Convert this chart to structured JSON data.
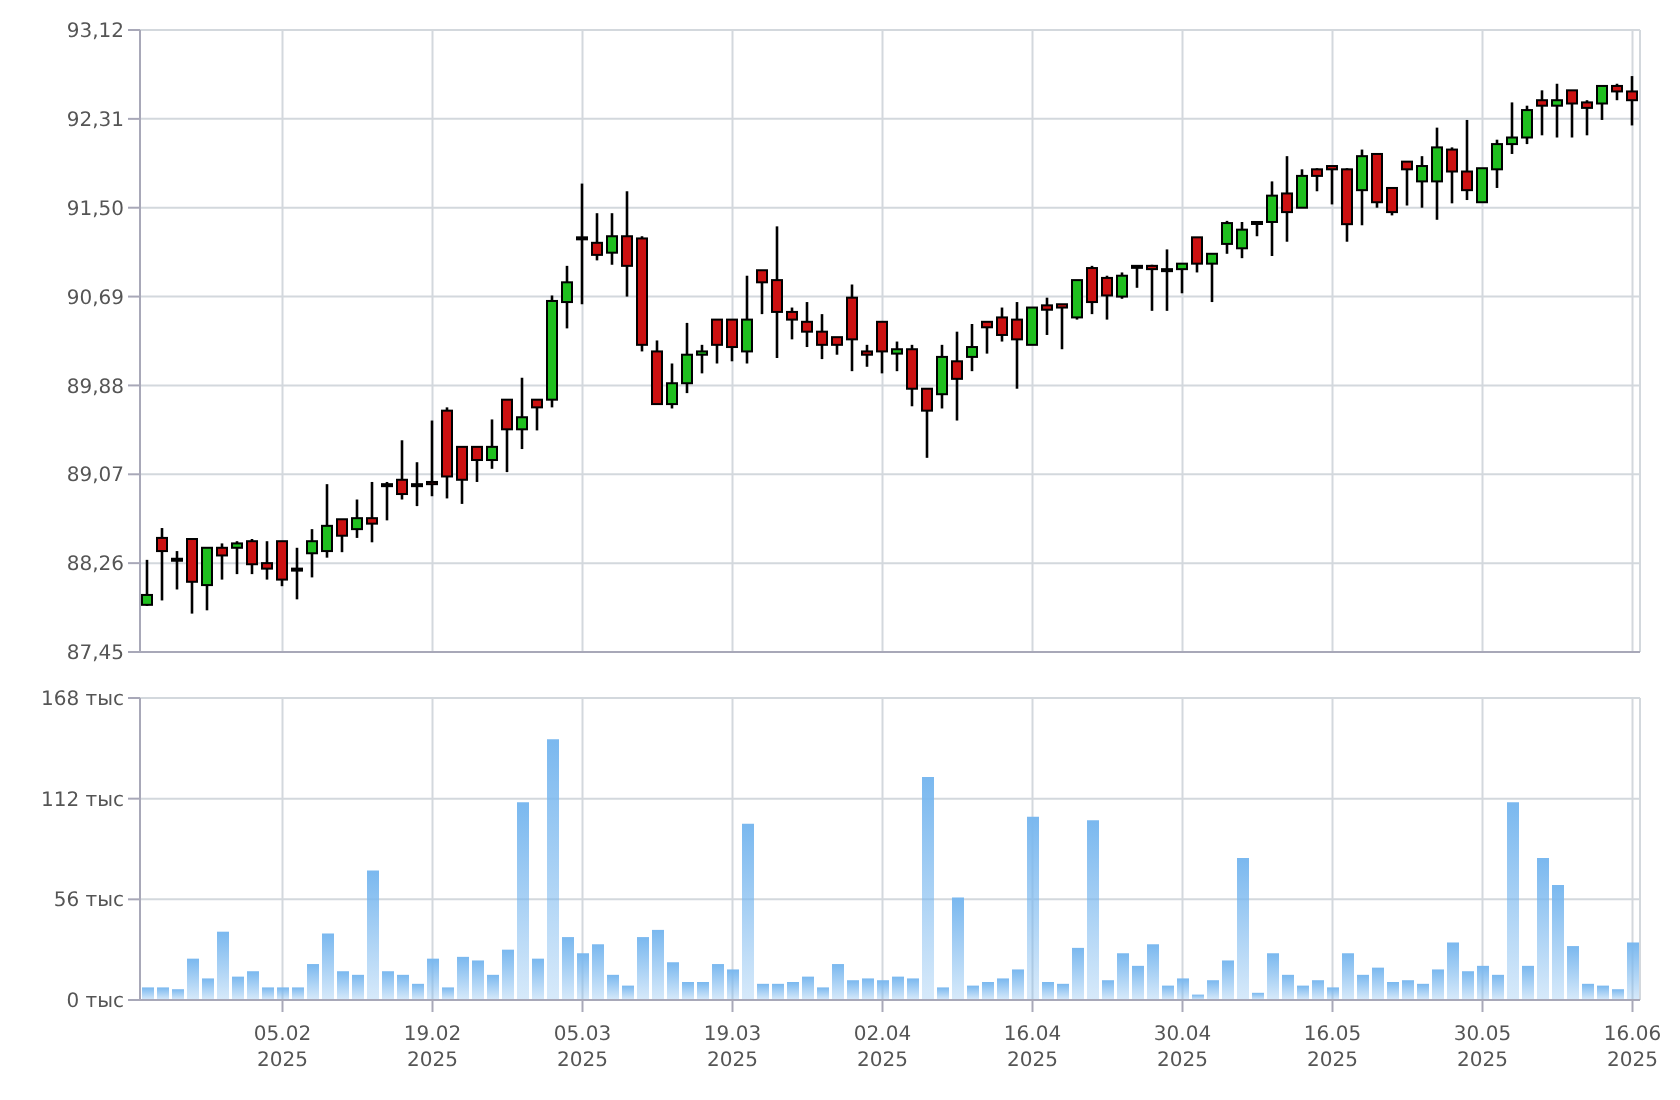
{
  "chart_data": [
    {
      "type": "candlestick",
      "tick_labels": "y",
      "grid": true,
      "categories": [
        null,
        null,
        null,
        null,
        null,
        null,
        null,
        null,
        null,
        null,
        null,
        null,
        null,
        null,
        null,
        null,
        null,
        null,
        null,
        null,
        null,
        null,
        null,
        null,
        null,
        null,
        null,
        null,
        null,
        null,
        null,
        null,
        null,
        null,
        null,
        null,
        null,
        null,
        null,
        null,
        null,
        null,
        null,
        null,
        null,
        null,
        null,
        null,
        null,
        null,
        null,
        null,
        null,
        null,
        null,
        null,
        null,
        null,
        null,
        null,
        null,
        null,
        null,
        null,
        null,
        null,
        null,
        null,
        null,
        null,
        null,
        null,
        null,
        null,
        null,
        null,
        null,
        null,
        null,
        null,
        null,
        null,
        null,
        null,
        null,
        null,
        null,
        null,
        null,
        null,
        null,
        null,
        null,
        null,
        null,
        null,
        null,
        null,
        null,
        null
      ],
      "ylim": [
        87.45,
        93.12
      ],
      "yticks": [
        {
          "value": 87.45,
          "label": "87,45"
        },
        {
          "value": 88.26,
          "label": "88,26"
        },
        {
          "value": 89.07,
          "label": "89,07"
        },
        {
          "value": 89.88,
          "label": "89,88"
        },
        {
          "value": 90.69,
          "label": "90,69"
        },
        {
          "value": 91.5,
          "label": "91,50"
        },
        {
          "value": 92.31,
          "label": "92,31"
        },
        {
          "value": 93.12,
          "label": "93,12"
        }
      ],
      "ohlc": [
        [
          87.88,
          88.29,
          87.87,
          87.97
        ],
        [
          88.49,
          88.58,
          87.92,
          88.37
        ],
        [
          88.3,
          88.37,
          88.02,
          88.3
        ],
        [
          88.48,
          88.48,
          87.8,
          88.09
        ],
        [
          88.06,
          88.4,
          87.83,
          88.4
        ],
        [
          88.4,
          88.44,
          88.11,
          88.33
        ],
        [
          88.4,
          88.46,
          88.16,
          88.44
        ],
        [
          88.46,
          88.48,
          88.16,
          88.25
        ],
        [
          88.26,
          88.46,
          88.11,
          88.21
        ],
        [
          88.46,
          88.46,
          88.05,
          88.11
        ],
        [
          88.21,
          88.4,
          87.93,
          88.21
        ],
        [
          88.35,
          88.57,
          88.13,
          88.46
        ],
        [
          88.37,
          88.98,
          88.31,
          88.6
        ],
        [
          88.66,
          88.66,
          88.36,
          88.51
        ],
        [
          88.57,
          88.84,
          88.49,
          88.67
        ],
        [
          88.67,
          89.0,
          88.45,
          88.62
        ],
        [
          88.98,
          89.0,
          88.65,
          88.98
        ],
        [
          89.02,
          89.38,
          88.84,
          88.89
        ],
        [
          88.98,
          89.18,
          88.78,
          88.98
        ],
        [
          89.0,
          89.56,
          88.87,
          88.98
        ],
        [
          89.65,
          89.68,
          88.85,
          89.05
        ],
        [
          89.32,
          89.32,
          88.8,
          89.02
        ],
        [
          89.32,
          89.32,
          89.0,
          89.2
        ],
        [
          89.2,
          89.57,
          89.12,
          89.32
        ],
        [
          89.75,
          89.75,
          89.09,
          89.48
        ],
        [
          89.48,
          89.95,
          89.3,
          89.59
        ],
        [
          89.75,
          89.75,
          89.47,
          89.68
        ],
        [
          89.75,
          90.7,
          89.68,
          90.65
        ],
        [
          90.64,
          90.97,
          90.4,
          90.82
        ],
        [
          91.23,
          91.72,
          90.62,
          91.23
        ],
        [
          91.18,
          91.45,
          91.02,
          91.07
        ],
        [
          91.09,
          91.45,
          90.98,
          91.24
        ],
        [
          91.24,
          91.65,
          90.69,
          90.97
        ],
        [
          91.22,
          91.24,
          90.19,
          90.25
        ],
        [
          90.19,
          90.29,
          89.71,
          89.71
        ],
        [
          89.71,
          90.08,
          89.67,
          89.9
        ],
        [
          89.9,
          90.45,
          89.81,
          90.16
        ],
        [
          90.16,
          90.25,
          89.99,
          90.19
        ],
        [
          90.48,
          90.48,
          90.08,
          90.25
        ],
        [
          90.48,
          90.48,
          90.1,
          90.23
        ],
        [
          90.19,
          90.88,
          90.08,
          90.48
        ],
        [
          90.93,
          90.93,
          90.53,
          90.82
        ],
        [
          90.84,
          91.33,
          90.13,
          90.55
        ],
        [
          90.55,
          90.59,
          90.3,
          90.48
        ],
        [
          90.46,
          90.64,
          90.23,
          90.37
        ],
        [
          90.37,
          90.53,
          90.12,
          90.25
        ],
        [
          90.32,
          90.32,
          90.16,
          90.25
        ],
        [
          90.68,
          90.8,
          90.01,
          90.3
        ],
        [
          90.19,
          90.25,
          90.05,
          90.16
        ],
        [
          90.46,
          90.46,
          89.99,
          90.19
        ],
        [
          90.17,
          90.28,
          90.01,
          90.21
        ],
        [
          90.21,
          90.25,
          89.69,
          89.85
        ],
        [
          89.85,
          89.85,
          89.22,
          89.65
        ],
        [
          89.8,
          90.25,
          89.67,
          90.14
        ],
        [
          90.1,
          90.37,
          89.56,
          89.94
        ],
        [
          90.14,
          90.44,
          90.01,
          90.23
        ],
        [
          90.46,
          90.46,
          90.17,
          90.41
        ],
        [
          90.5,
          90.59,
          90.28,
          90.34
        ],
        [
          90.48,
          90.64,
          89.85,
          90.3
        ],
        [
          90.25,
          90.59,
          90.25,
          90.59
        ],
        [
          90.61,
          90.68,
          90.34,
          90.57
        ],
        [
          90.62,
          90.62,
          90.21,
          90.59
        ],
        [
          90.5,
          90.84,
          90.48,
          90.84
        ],
        [
          90.95,
          90.97,
          90.53,
          90.64
        ],
        [
          90.86,
          90.88,
          90.48,
          90.7
        ],
        [
          90.69,
          90.91,
          90.67,
          90.88
        ],
        [
          90.97,
          90.97,
          90.77,
          90.97
        ],
        [
          90.97,
          90.98,
          90.56,
          90.94
        ],
        [
          90.94,
          91.12,
          90.56,
          90.94
        ],
        [
          90.94,
          90.99,
          90.72,
          90.99
        ],
        [
          91.23,
          91.23,
          90.91,
          90.99
        ],
        [
          90.99,
          91.08,
          90.64,
          91.08
        ],
        [
          91.17,
          91.38,
          91.08,
          91.36
        ],
        [
          91.13,
          91.37,
          91.04,
          91.3
        ],
        [
          91.37,
          91.37,
          91.24,
          91.37
        ],
        [
          91.37,
          91.74,
          91.06,
          91.61
        ],
        [
          91.63,
          91.97,
          91.19,
          91.46
        ],
        [
          91.5,
          91.85,
          91.5,
          91.79
        ],
        [
          91.85,
          91.86,
          91.65,
          91.79
        ],
        [
          91.88,
          91.88,
          91.53,
          91.85
        ],
        [
          91.85,
          91.86,
          91.19,
          91.35
        ],
        [
          91.66,
          92.03,
          91.34,
          91.97
        ],
        [
          91.99,
          91.99,
          91.5,
          91.55
        ],
        [
          91.68,
          91.68,
          91.43,
          91.46
        ],
        [
          91.92,
          91.92,
          91.52,
          91.85
        ],
        [
          91.74,
          91.97,
          91.5,
          91.88
        ],
        [
          91.74,
          92.23,
          91.39,
          92.05
        ],
        [
          92.03,
          92.05,
          91.54,
          91.83
        ],
        [
          91.83,
          92.3,
          91.57,
          91.66
        ],
        [
          91.55,
          91.86,
          91.55,
          91.86
        ],
        [
          91.85,
          92.12,
          91.68,
          92.08
        ],
        [
          92.08,
          92.46,
          91.99,
          92.14
        ],
        [
          92.14,
          92.43,
          92.08,
          92.39
        ],
        [
          92.48,
          92.57,
          92.16,
          92.43
        ],
        [
          92.43,
          92.63,
          92.14,
          92.48
        ],
        [
          92.57,
          92.57,
          92.14,
          92.45
        ],
        [
          92.46,
          92.48,
          92.16,
          92.41
        ],
        [
          92.45,
          92.61,
          92.3,
          92.61
        ],
        [
          92.61,
          92.63,
          92.48,
          92.56
        ],
        [
          92.56,
          92.7,
          92.25,
          92.48
        ]
      ],
      "colors": [
        "#1fbf1f",
        "#cc1111",
        "#cc1111",
        "#cc1111",
        "#1fbf1f",
        "#cc1111",
        "#1fbf1f",
        "#cc1111",
        "#cc1111",
        "#cc1111",
        "#cc1111",
        "#1fbf1f",
        "#1fbf1f",
        "#cc1111",
        "#1fbf1f",
        "#cc1111",
        "#cc1111",
        "#cc1111",
        "#cc1111",
        "#cc1111",
        "#cc1111",
        "#cc1111",
        "#cc1111",
        "#1fbf1f",
        "#cc1111",
        "#1fbf1f",
        "#cc1111",
        "#1fbf1f",
        "#1fbf1f",
        "#cc1111",
        "#cc1111",
        "#1fbf1f",
        "#cc1111",
        "#cc1111",
        "#cc1111",
        "#1fbf1f",
        "#1fbf1f",
        "#1fbf1f",
        "#cc1111",
        "#cc1111",
        "#1fbf1f",
        "#cc1111",
        "#cc1111",
        "#cc1111",
        "#cc1111",
        "#cc1111",
        "#cc1111",
        "#cc1111",
        "#cc1111",
        "#cc1111",
        "#1fbf1f",
        "#cc1111",
        "#cc1111",
        "#1fbf1f",
        "#cc1111",
        "#1fbf1f",
        "#cc1111",
        "#cc1111",
        "#cc1111",
        "#1fbf1f",
        "#cc1111",
        "#cc1111",
        "#1fbf1f",
        "#cc1111",
        "#cc1111",
        "#1fbf1f",
        "#cc1111",
        "#cc1111",
        "#cc1111",
        "#1fbf1f",
        "#cc1111",
        "#1fbf1f",
        "#1fbf1f",
        "#1fbf1f",
        "#cc1111",
        "#1fbf1f",
        "#cc1111",
        "#1fbf1f",
        "#cc1111",
        "#cc1111",
        "#cc1111",
        "#1fbf1f",
        "#cc1111",
        "#cc1111",
        "#cc1111",
        "#1fbf1f",
        "#1fbf1f",
        "#cc1111",
        "#cc1111",
        "#1fbf1f",
        "#1fbf1f",
        "#1fbf1f",
        "#1fbf1f",
        "#cc1111",
        "#1fbf1f",
        "#cc1111",
        "#cc1111",
        "#1fbf1f",
        "#cc1111",
        "#cc1111"
      ]
    },
    {
      "type": "bar",
      "grid": true,
      "color": "#7ab8ef",
      "categories": [
        null,
        null,
        null,
        null,
        null,
        null,
        null,
        null,
        null,
        "05.02\n2025",
        null,
        null,
        null,
        null,
        null,
        null,
        null,
        null,
        null,
        "19.02\n2025",
        null,
        null,
        null,
        null,
        null,
        null,
        null,
        null,
        null,
        "05.03\n2025",
        null,
        null,
        null,
        null,
        null,
        null,
        null,
        null,
        null,
        "19.03\n2025",
        null,
        null,
        null,
        null,
        null,
        null,
        null,
        null,
        null,
        "02.04\n2025",
        null,
        null,
        null,
        null,
        null,
        null,
        null,
        null,
        null,
        "16.04\n2025",
        null,
        null,
        null,
        null,
        null,
        null,
        null,
        null,
        null,
        "30.04\n2025",
        null,
        null,
        null,
        null,
        null,
        null,
        null,
        null,
        null,
        "16.05\n2025",
        null,
        null,
        null,
        null,
        null,
        null,
        null,
        null,
        null,
        "30.05\n2025",
        null,
        null,
        null,
        null,
        null,
        null,
        null,
        null,
        null,
        "16.06\n2025"
      ],
      "ylim": [
        0,
        168
      ],
      "yticks": [
        {
          "value": 0,
          "label": "0 тыс"
        },
        {
          "value": 56,
          "label": "56 тыс"
        },
        {
          "value": 112,
          "label": "112 тыс"
        },
        {
          "value": 168,
          "label": "168 тыс"
        }
      ],
      "values": [
        7,
        7,
        6,
        23,
        12,
        38,
        13,
        16,
        7,
        7,
        7,
        20,
        37,
        16,
        14,
        72,
        16,
        14,
        9,
        23,
        7,
        24,
        22,
        14,
        28,
        110,
        23,
        145,
        35,
        26,
        31,
        14,
        8,
        35,
        39,
        21,
        10,
        10,
        20,
        17,
        98,
        9,
        9,
        10,
        13,
        7,
        20,
        11,
        12,
        11,
        13,
        12,
        124,
        7,
        57,
        8,
        10,
        12,
        17,
        102,
        10,
        9,
        29,
        100,
        11,
        26,
        19,
        31,
        8,
        12,
        3,
        11,
        22,
        79,
        4,
        26,
        14,
        8,
        11,
        7,
        26,
        14,
        18,
        10,
        11,
        9,
        17,
        32,
        16,
        19,
        14,
        110,
        19,
        79,
        64,
        30,
        9,
        8,
        6,
        32
      ]
    }
  ]
}
